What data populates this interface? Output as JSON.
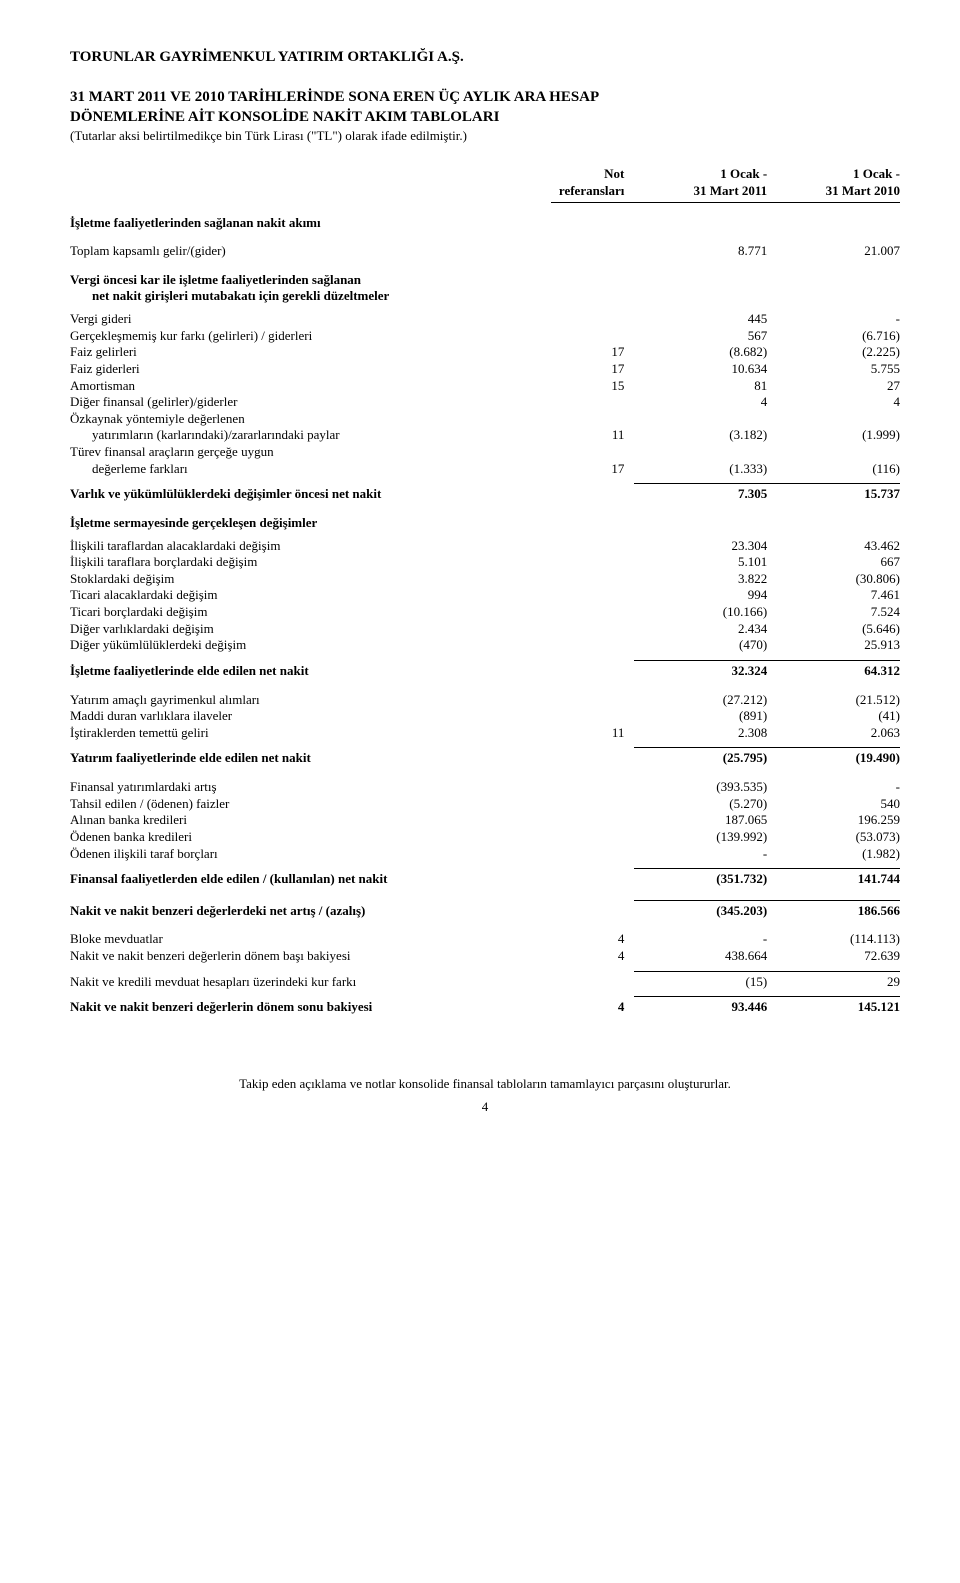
{
  "company": "TORUNLAR GAYRİMENKUL YATIRIM ORTAKLIĞI A.Ş.",
  "title_lines": [
    "31 MART 2011 VE 2010 TARİHLERİNDE SONA EREN ÜÇ AYLIK ARA HESAP",
    "DÖNEMLERİNE AİT KONSOLİDE NAKİT AKIM TABLOLARI"
  ],
  "subtitle": "(Tutarlar aksi belirtilmedikçe bin Türk Lirası (\"TL\") olarak ifade edilmiştir.)",
  "col_headers": {
    "note_l1": "Not",
    "note_l2": "referansları",
    "cur_l1": "1 Ocak -",
    "cur_l2": "31 Mart 2011",
    "prev_l1": "1 Ocak -",
    "prev_l2": "31 Mart 2010"
  },
  "sections": {
    "op_heading": "İşletme faaliyetlerinden sağlanan nakit akımı",
    "total_gross": {
      "label": "Toplam kapsamlı gelir/(gider)",
      "cur": "8.771",
      "prev": "21.007"
    },
    "adj_heading_l1": "Vergi öncesi kar ile işletme faaliyetlerinden sağlanan",
    "adj_heading_l2": "net nakit girişleri mutabakatı için gerekli düzeltmeler",
    "adj_rows": [
      {
        "label": "Vergi gideri",
        "note": "",
        "cur": "445",
        "prev": "-"
      },
      {
        "label": "Gerçekleşmemiş kur farkı (gelirleri) / giderleri",
        "note": "",
        "cur": "567",
        "prev": "(6.716)"
      },
      {
        "label": "Faiz gelirleri",
        "note": "17",
        "cur": "(8.682)",
        "prev": "(2.225)"
      },
      {
        "label": "Faiz giderleri",
        "note": "17",
        "cur": "10.634",
        "prev": "5.755"
      },
      {
        "label": "Amortisman",
        "note": "15",
        "cur": "81",
        "prev": "27"
      },
      {
        "label": "Diğer finansal (gelirler)/giderler",
        "note": "",
        "cur": "4",
        "prev": "4"
      }
    ],
    "adj_multiline": [
      {
        "l1": "Özkaynak yöntemiyle değerlenen",
        "l2": "yatırımların (karlarındaki)/zararlarındaki paylar",
        "note": "11",
        "cur": "(3.182)",
        "prev": "(1.999)"
      },
      {
        "l1": "Türev finansal araçların gerçeğe uygun",
        "l2": "değerleme farkları",
        "note": "17",
        "cur": "(1.333)",
        "prev": "(116)"
      }
    ],
    "pre_wc": {
      "label": "Varlık ve yükümlülüklerdeki değişimler öncesi net nakit",
      "cur": "7.305",
      "prev": "15.737"
    },
    "wc_heading": "İşletme sermayesinde gerçekleşen değişimler",
    "wc_rows": [
      {
        "label": "İlişkili taraflardan alacaklardaki değişim",
        "cur": "23.304",
        "prev": "43.462"
      },
      {
        "label": "İlişkili taraflara borçlardaki değişim",
        "cur": "5.101",
        "prev": "667"
      },
      {
        "label": "Stoklardaki değişim",
        "cur": "3.822",
        "prev": "(30.806)"
      },
      {
        "label": "Ticari alacaklardaki değişim",
        "cur": "994",
        "prev": "7.461"
      },
      {
        "label": "Ticari borçlardaki değişim",
        "cur": "(10.166)",
        "prev": "7.524"
      },
      {
        "label": "Diğer varlıklardaki değişim",
        "cur": "2.434",
        "prev": "(5.646)"
      },
      {
        "label": "Diğer yükümlülüklerdeki değişim",
        "cur": "(470)",
        "prev": "25.913"
      }
    ],
    "op_total": {
      "label": "İşletme faaliyetlerinde elde edilen net nakit",
      "cur": "32.324",
      "prev": "64.312"
    },
    "inv_rows": [
      {
        "label": "Yatırım amaçlı gayrimenkul alımları",
        "note": "",
        "cur": "(27.212)",
        "prev": "(21.512)"
      },
      {
        "label": "Maddi duran varlıklara ilaveler",
        "note": "",
        "cur": "(891)",
        "prev": "(41)"
      },
      {
        "label": "İştiraklerden temettü geliri",
        "note": "11",
        "cur": "2.308",
        "prev": "2.063"
      }
    ],
    "inv_total": {
      "label": "Yatırım faaliyetlerinde elde edilen net nakit",
      "cur": "(25.795)",
      "prev": "(19.490)"
    },
    "fin_rows": [
      {
        "label": "Finansal yatırımlardaki artış",
        "cur": "(393.535)",
        "prev": "-"
      },
      {
        "label": "Tahsil edilen / (ödenen) faizler",
        "cur": "(5.270)",
        "prev": "540"
      },
      {
        "label": "Alınan banka kredileri",
        "cur": "187.065",
        "prev": "196.259"
      },
      {
        "label": "Ödenen banka kredileri",
        "cur": "(139.992)",
        "prev": "(53.073)"
      },
      {
        "label": "Ödenen ilişkili taraf borçları",
        "cur": "-",
        "prev": "(1.982)"
      }
    ],
    "fin_total": {
      "label": "Finansal faaliyetlerden elde edilen / (kullanılan) net nakit",
      "cur": "(351.732)",
      "prev": "141.744"
    },
    "net_change": {
      "label": "Nakit ve nakit benzeri değerlerdeki net artış / (azalış)",
      "cur": "(345.203)",
      "prev": "186.566"
    },
    "closing_rows": [
      {
        "label": "Bloke mevduatlar",
        "note": "4",
        "cur": "-",
        "prev": "(114.113)"
      },
      {
        "label": "Nakit ve nakit benzeri değerlerin dönem başı bakiyesi",
        "note": "4",
        "cur": "438.664",
        "prev": "72.639"
      }
    ],
    "fx_effect": {
      "label": "Nakit ve kredili mevduat hesapları üzerindeki kur farkı",
      "cur": "(15)",
      "prev": "29"
    },
    "end_balance": {
      "label": "Nakit ve nakit benzeri değerlerin dönem sonu bakiyesi",
      "note": "4",
      "cur": "93.446",
      "prev": "145.121"
    }
  },
  "footer": "Takip eden açıklama ve notlar konsolide finansal tabloların tamamlayıcı parçasını oluştururlar.",
  "page_number": "4"
}
